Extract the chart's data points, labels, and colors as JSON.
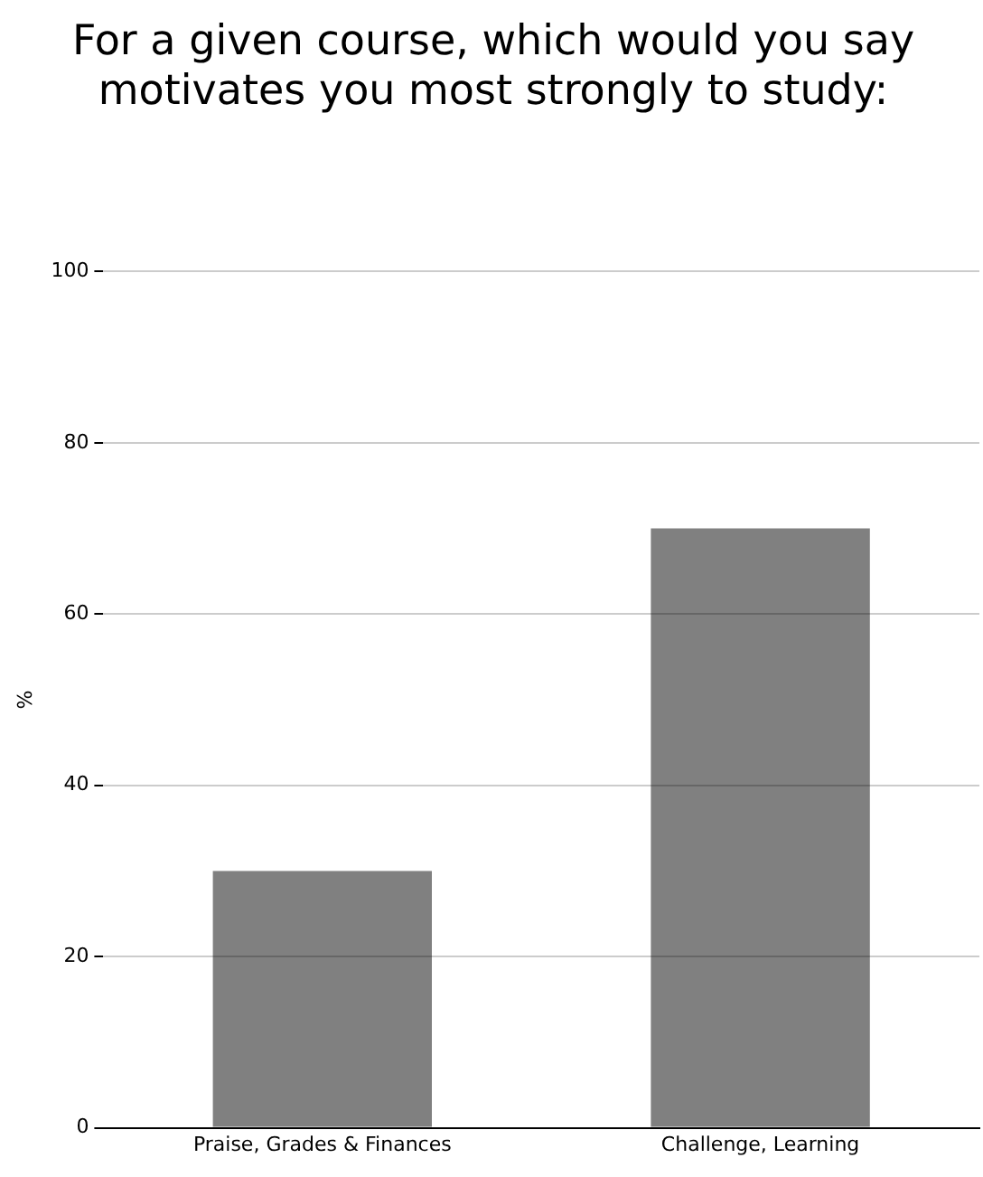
{
  "chart_data": {
    "type": "bar",
    "title": "For a given course, which would you say motivates you most strongly to study:",
    "ylabel": "%",
    "categories": [
      "Praise, Grades & Finances",
      "Challenge, Learning"
    ],
    "values": [
      30,
      70
    ],
    "color": "#808080",
    "ylim": [
      0,
      100
    ],
    "yticks": [
      0,
      20,
      40,
      60,
      80,
      100
    ],
    "grid": "y",
    "legend": false
  }
}
